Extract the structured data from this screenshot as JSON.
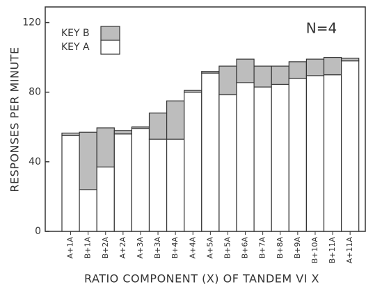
{
  "chart_data": {
    "type": "stacked-bar",
    "annotation": "N=4",
    "xlabel": "RATIO COMPONENT (X) OF TANDEM VI X",
    "ylabel": "RESPONSES PER MINUTE",
    "categories": [
      "A+1A",
      "B+1A",
      "B+2A",
      "A+2A",
      "A+3A",
      "B+3A",
      "B+4A",
      "A+4A",
      "A+5A",
      "B+5A",
      "B+6A",
      "B+7A",
      "B+8A",
      "B+9A",
      "B+10A",
      "B+11A",
      "A+11A"
    ],
    "series": [
      {
        "name": "KEY A",
        "color": "#ffffff",
        "values": [
          55,
          24,
          37,
          56,
          59,
          53,
          53,
          80,
          91,
          78.5,
          85.5,
          83,
          84.5,
          88,
          89.5,
          90,
          98
        ]
      },
      {
        "name": "KEY B",
        "color": "#bdbdbd",
        "values": [
          1.5,
          33,
          22.5,
          2,
          1,
          15,
          22,
          1,
          1,
          16.5,
          13.5,
          12,
          10.5,
          9.5,
          9.5,
          10,
          1.5
        ]
      }
    ],
    "ylim": [
      0,
      129
    ],
    "yticks": [
      0,
      40,
      80,
      120
    ],
    "grid": false
  }
}
